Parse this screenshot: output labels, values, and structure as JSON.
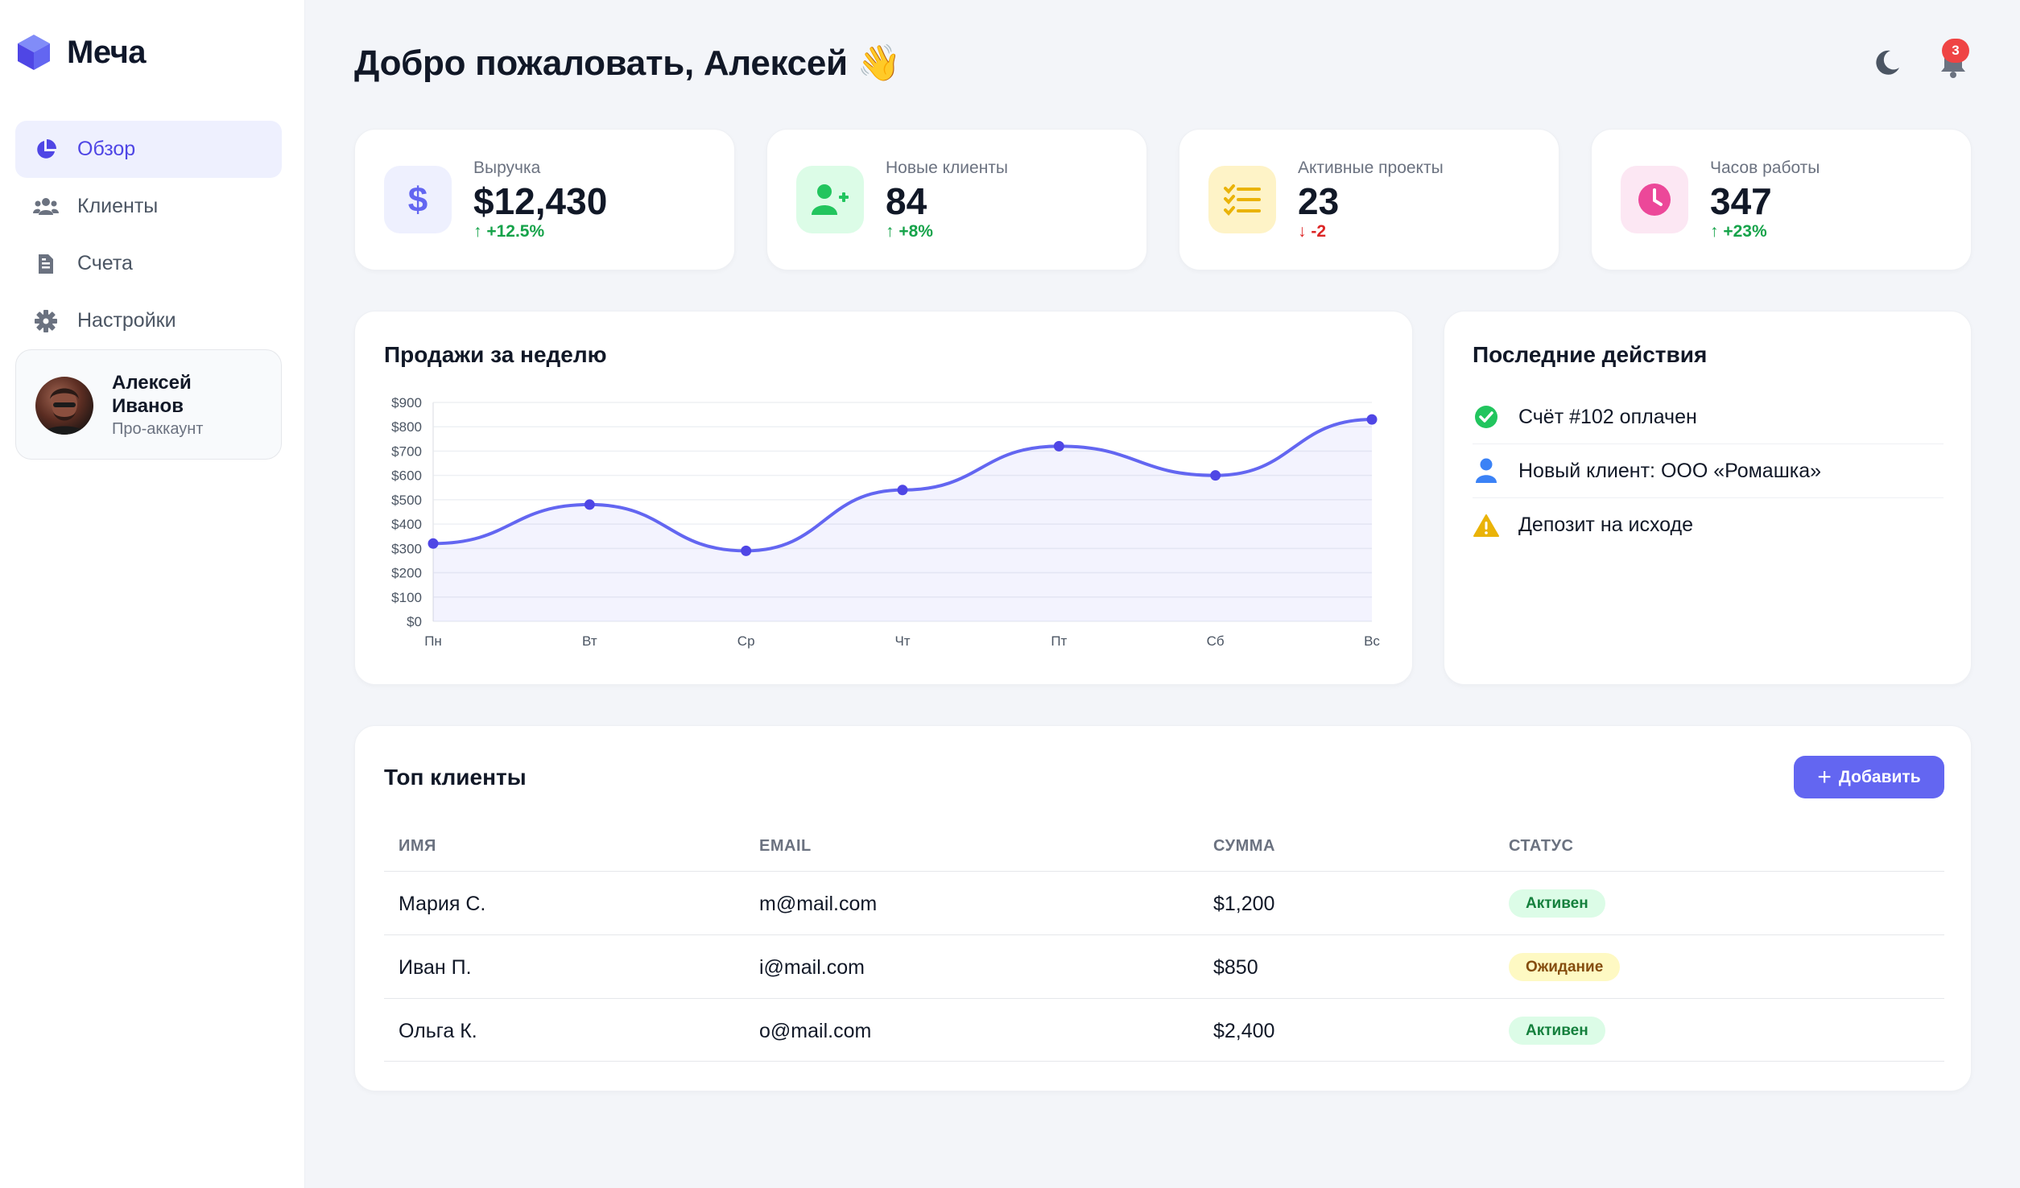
{
  "brand": {
    "name": "Меча",
    "color": "#6366f1"
  },
  "nav": [
    {
      "label": "Обзор",
      "icon": "pie-chart-icon",
      "active": true
    },
    {
      "label": "Клиенты",
      "icon": "users-icon",
      "active": false
    },
    {
      "label": "Счета",
      "icon": "invoice-icon",
      "active": false
    },
    {
      "label": "Настройки",
      "icon": "gear-icon",
      "active": false
    }
  ],
  "user": {
    "name": "Алексей Иванов",
    "role": "Про-аккаунт"
  },
  "header": {
    "title": "Добро пожаловать, Алексей 👋",
    "notifications": "3"
  },
  "stats": [
    {
      "label": "Выручка",
      "value": "$12,430",
      "delta": "↑ +12.5%",
      "trend": "up",
      "icon": "dollar-icon",
      "color": "#6366f1"
    },
    {
      "label": "Новые клиенты",
      "value": "84",
      "delta": "↑ +8%",
      "trend": "up",
      "icon": "user-plus-icon",
      "color": "#22c55e"
    },
    {
      "label": "Активные проекты",
      "value": "23",
      "delta": "↓ -2",
      "trend": "down",
      "icon": "task-list-icon",
      "color": "#eab308"
    },
    {
      "label": "Часов работы",
      "value": "347",
      "delta": "↑ +23%",
      "trend": "up",
      "icon": "clock-icon",
      "color": "#ec4899"
    }
  ],
  "sales": {
    "title": "Продажи за неделю"
  },
  "chart_data": {
    "type": "line",
    "title": "Продажи за неделю",
    "categories": [
      "Пн",
      "Вт",
      "Ср",
      "Чт",
      "Пт",
      "Сб",
      "Вс"
    ],
    "values": [
      320,
      480,
      290,
      540,
      720,
      600,
      830
    ],
    "yticks": [
      "$0",
      "$100",
      "$200",
      "$300",
      "$400",
      "$500",
      "$600",
      "$700",
      "$800",
      "$900"
    ],
    "ylim": [
      0,
      900
    ],
    "fill": true,
    "grid": true,
    "color": "#6366f1"
  },
  "activity": {
    "title": "Последние действия",
    "items": [
      {
        "text": "Счёт #102 оплачен",
        "icon": "check-circle-icon",
        "color": "#22c55e"
      },
      {
        "text": "Новый клиент: ООО «Ромашка»",
        "icon": "user-icon",
        "color": "#3b82f6"
      },
      {
        "text": "Депозит на исходе",
        "icon": "warning-icon",
        "color": "#eab308"
      }
    ]
  },
  "clients": {
    "title": "Топ клиенты",
    "add_label": "Добавить",
    "columns": [
      "ИМЯ",
      "EMAIL",
      "СУММА",
      "СТАТУС"
    ],
    "rows": [
      {
        "name": "Мария С.",
        "email": "m@mail.com",
        "amount": "$1,200",
        "status": "Активен",
        "status_type": "active"
      },
      {
        "name": "Иван П.",
        "email": "i@mail.com",
        "amount": "$850",
        "status": "Ожидание",
        "status_type": "pending"
      },
      {
        "name": "Ольга К.",
        "email": "o@mail.com",
        "amount": "$2,400",
        "status": "Активен",
        "status_type": "active"
      }
    ]
  }
}
